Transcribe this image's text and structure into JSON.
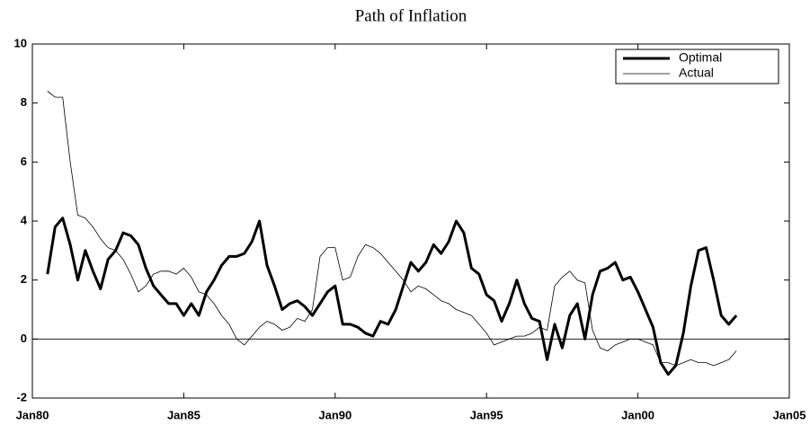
{
  "chart_data": {
    "type": "line",
    "title": "Path of Inflation",
    "x": [
      "1980-07",
      "1980-10",
      "1981-01",
      "1981-04",
      "1981-07",
      "1981-10",
      "1982-01",
      "1982-04",
      "1982-07",
      "1982-10",
      "1983-01",
      "1983-04",
      "1983-07",
      "1983-10",
      "1984-01",
      "1984-04",
      "1984-07",
      "1984-10",
      "1985-01",
      "1985-04",
      "1985-07",
      "1985-10",
      "1986-01",
      "1986-04",
      "1986-07",
      "1986-10",
      "1987-01",
      "1987-04",
      "1987-07",
      "1987-10",
      "1988-01",
      "1988-04",
      "1988-07",
      "1988-10",
      "1989-01",
      "1989-04",
      "1989-07",
      "1989-10",
      "1990-01",
      "1990-04",
      "1990-07",
      "1990-10",
      "1991-01",
      "1991-04",
      "1991-07",
      "1991-10",
      "1992-01",
      "1992-04",
      "1992-07",
      "1992-10",
      "1993-01",
      "1993-04",
      "1993-07",
      "1993-10",
      "1994-01",
      "1994-04",
      "1994-07",
      "1994-10",
      "1995-01",
      "1995-04",
      "1995-07",
      "1995-10",
      "1996-01",
      "1996-04",
      "1996-07",
      "1996-10",
      "1997-01",
      "1997-04",
      "1997-07",
      "1997-10",
      "1998-01",
      "1998-04",
      "1998-07",
      "1998-10",
      "1999-01",
      "1999-04",
      "1999-07",
      "1999-10",
      "2000-01",
      "2000-04",
      "2000-07",
      "2000-10",
      "2001-01",
      "2001-04",
      "2001-07",
      "2001-10",
      "2002-01",
      "2002-04",
      "2002-07",
      "2002-10",
      "2003-01",
      "2003-04"
    ],
    "series": [
      {
        "name": "Optimal",
        "color": "#000000",
        "width": 3,
        "values": [
          2.2,
          3.8,
          4.1,
          3.2,
          2.0,
          3.0,
          2.3,
          1.7,
          2.7,
          3.0,
          3.6,
          3.5,
          3.2,
          2.4,
          1.8,
          1.5,
          1.2,
          1.2,
          0.8,
          1.2,
          0.8,
          1.6,
          2.0,
          2.5,
          2.8,
          2.8,
          2.9,
          3.3,
          4.0,
          2.5,
          1.8,
          1.0,
          1.2,
          1.3,
          1.1,
          0.8,
          1.2,
          1.6,
          1.8,
          0.5,
          0.5,
          0.4,
          0.2,
          0.1,
          0.6,
          0.5,
          1.0,
          1.8,
          2.6,
          2.3,
          2.6,
          3.2,
          2.9,
          3.3,
          4.0,
          3.6,
          2.4,
          2.2,
          1.5,
          1.3,
          0.6,
          1.2,
          2.0,
          1.2,
          0.7,
          0.6,
          -0.7,
          0.5,
          -0.3,
          0.8,
          1.2,
          0.0,
          1.5,
          2.3,
          2.4,
          2.6,
          2.0,
          2.1,
          1.6,
          1.0,
          0.4,
          -0.8,
          -1.2,
          -0.9,
          0.2,
          1.8,
          3.0,
          3.1,
          2.0,
          0.8,
          0.5,
          0.8
        ]
      },
      {
        "name": "Actual",
        "color": "#000000",
        "width": 0.8,
        "values": [
          8.4,
          8.2,
          8.2,
          6.0,
          4.2,
          4.1,
          3.8,
          3.4,
          3.1,
          3.0,
          2.7,
          2.2,
          1.6,
          1.8,
          2.2,
          2.3,
          2.3,
          2.2,
          2.4,
          2.1,
          1.6,
          1.5,
          1.2,
          0.8,
          0.5,
          0.0,
          -0.2,
          0.1,
          0.4,
          0.6,
          0.5,
          0.3,
          0.4,
          0.7,
          0.6,
          1.0,
          2.8,
          3.1,
          3.1,
          2.0,
          2.1,
          2.8,
          3.2,
          3.1,
          2.9,
          2.6,
          2.3,
          2.0,
          1.6,
          1.8,
          1.7,
          1.5,
          1.3,
          1.2,
          1.0,
          0.9,
          0.8,
          0.5,
          0.2,
          -0.2,
          -0.1,
          0.0,
          0.1,
          0.1,
          0.2,
          0.4,
          0.3,
          1.8,
          2.1,
          2.3,
          2.0,
          1.9,
          0.3,
          -0.3,
          -0.4,
          -0.2,
          -0.1,
          0.0,
          0.0,
          -0.1,
          -0.2,
          -0.8,
          -0.8,
          -0.9,
          -0.8,
          -0.7,
          -0.8,
          -0.8,
          -0.9,
          -0.8,
          -0.7,
          -0.4
        ]
      }
    ],
    "xlim": [
      "1980-01",
      "2005-01"
    ],
    "xticks": [
      {
        "value": "1980-01",
        "label": "Jan80"
      },
      {
        "value": "1985-01",
        "label": "Jan85"
      },
      {
        "value": "1990-01",
        "label": "Jan90"
      },
      {
        "value": "1995-01",
        "label": "Jan95"
      },
      {
        "value": "2000-01",
        "label": "Jan00"
      },
      {
        "value": "2005-01",
        "label": "Jan05"
      }
    ],
    "ylim": [
      -2,
      10
    ],
    "yticks": [
      -2,
      0,
      2,
      4,
      6,
      8,
      10
    ],
    "legend": "northeast",
    "zero_line": true
  }
}
